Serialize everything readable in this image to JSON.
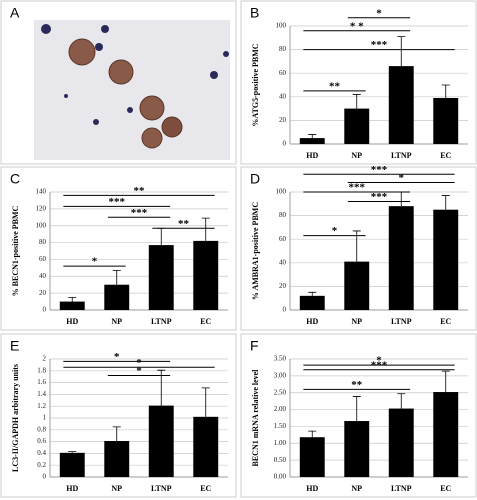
{
  "panel_a": {
    "label": "A"
  },
  "chart_data": [
    {
      "type": "bar",
      "panel_label": "B",
      "ylabel": "%ATG5-positive PBMC",
      "categories": [
        "HD",
        "NP",
        "LTNP",
        "EC"
      ],
      "values": [
        5,
        30,
        66,
        39
      ],
      "errors": [
        3,
        12,
        25,
        11
      ],
      "ylim": [
        0,
        100
      ],
      "yticks": [
        0,
        20,
        40,
        60,
        80,
        100
      ],
      "grid": true,
      "color": "#000000",
      "brackets": [
        {
          "label": "*",
          "start": 1,
          "end": 2,
          "y": 107
        },
        {
          "label": "* *",
          "start": 0,
          "end": 2,
          "y": 96
        },
        {
          "label": "***",
          "start": 0,
          "end": 3,
          "y": 80
        },
        {
          "label": "**",
          "start": 0,
          "end": 1,
          "y": 45
        }
      ]
    },
    {
      "type": "bar",
      "panel_label": "C",
      "ylabel": "% BECN1-positive PBMC",
      "categories": [
        "HD",
        "NP",
        "LTNP",
        "EC"
      ],
      "values": [
        10,
        30,
        77,
        82
      ],
      "errors": [
        5,
        17,
        20,
        27
      ],
      "ylim": [
        0,
        140
      ],
      "yticks": [
        0,
        20,
        40,
        60,
        80,
        100,
        120,
        140
      ],
      "grid": true,
      "color": "#000000",
      "brackets": [
        {
          "label": "**",
          "start": 0,
          "end": 3,
          "y": 136
        },
        {
          "label": "***",
          "start": 0,
          "end": 2,
          "y": 123
        },
        {
          "label": "***",
          "start": 1,
          "end": 2,
          "y": 110
        },
        {
          "label": "**",
          "start": 2,
          "end": 3,
          "y": 97
        },
        {
          "label": "*",
          "start": 0,
          "end": 1,
          "y": 52
        }
      ]
    },
    {
      "type": "bar",
      "panel_label": "D",
      "ylabel": "% AMBRA1-positive PBMC",
      "categories": [
        "HD",
        "NP",
        "LTNP",
        "EC"
      ],
      "values": [
        12,
        41,
        88,
        85
      ],
      "errors": [
        3,
        26,
        12,
        12
      ],
      "ylim": [
        0,
        100
      ],
      "yticks": [
        0,
        20,
        40,
        60,
        80,
        100
      ],
      "grid": true,
      "color": "#000000",
      "brackets": [
        {
          "label": "***",
          "start": 0,
          "end": 3,
          "y": 115
        },
        {
          "label": "*",
          "start": 1,
          "end": 3,
          "y": 108
        },
        {
          "label": "***",
          "start": 0,
          "end": 2,
          "y": 100
        },
        {
          "label": "***",
          "start": 1,
          "end": 2,
          "y": 92
        },
        {
          "label": "*",
          "start": 0,
          "end": 1,
          "y": 63
        }
      ]
    },
    {
      "type": "bar",
      "panel_label": "E",
      "ylabel": "LC3-II/GAPDH arbitrary units",
      "categories": [
        "HD",
        "NP",
        "LTNP",
        "EC"
      ],
      "values": [
        0.41,
        0.61,
        1.21,
        1.02
      ],
      "errors": [
        0.02,
        0.24,
        0.6,
        0.49
      ],
      "ylim": [
        0,
        2
      ],
      "yticks": [
        0,
        0.2,
        0.4,
        0.6,
        0.8,
        1,
        1.2,
        1.4,
        1.6,
        1.8,
        2
      ],
      "grid": true,
      "color": "#000000",
      "brackets": [
        {
          "label": "*",
          "start": 0,
          "end": 2,
          "y": 1.96
        },
        {
          "label": "*",
          "start": 0,
          "end": 3,
          "y": 1.86
        },
        {
          "label": "*",
          "start": 1,
          "end": 2,
          "y": 1.72
        }
      ]
    },
    {
      "type": "bar",
      "panel_label": "F",
      "ylabel": "BECN1 mRNA relative level",
      "categories": [
        "HD",
        "NP",
        "LTNP",
        "EC"
      ],
      "values": [
        1.18,
        1.66,
        2.03,
        2.52
      ],
      "errors": [
        0.18,
        0.73,
        0.44,
        0.62
      ],
      "ylim": [
        0,
        3.5
      ],
      "yticks": [
        {
          "value": 0,
          "label": "0.00"
        },
        {
          "value": 0.5,
          "label": "0.50"
        },
        {
          "value": 1,
          "label": "1.00"
        },
        {
          "value": 1.5,
          "label": "1.50"
        },
        {
          "value": 2,
          "label": "2.00"
        },
        {
          "value": 2.5,
          "label": "2.50"
        },
        {
          "value": 3,
          "label": "3.00"
        },
        {
          "value": 3.5,
          "label": "3.50"
        }
      ],
      "grid": true,
      "color": "#000000",
      "brackets": [
        {
          "label": "*",
          "start": 0,
          "end": 3,
          "y": 3.32
        },
        {
          "label": "***",
          "start": 0,
          "end": 3,
          "y": 3.18
        },
        {
          "label": "**",
          "start": 0,
          "end": 2,
          "y": 2.6
        }
      ]
    }
  ]
}
